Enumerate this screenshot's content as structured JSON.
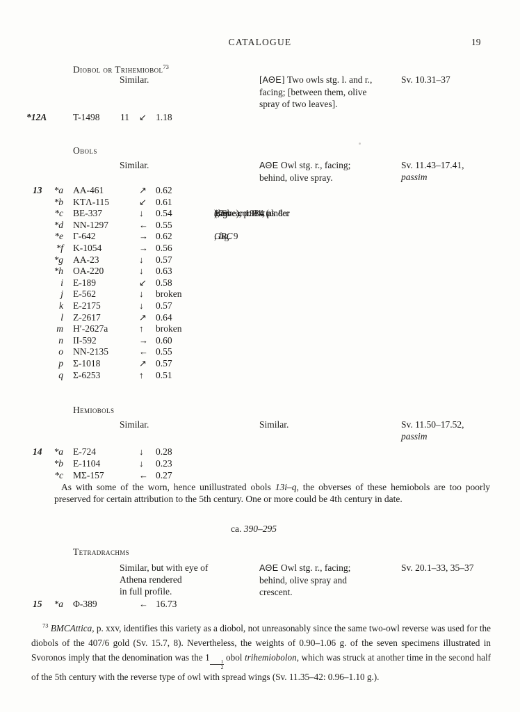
{
  "page": {
    "running_head": "CATALOGUE",
    "page_number": "19"
  },
  "colors": {
    "ink": "#1d1c1a",
    "paper": "#fdfdfb"
  },
  "sections": [
    {
      "heading": "Diobol or Trihemiobol",
      "heading_note": "73",
      "obverse": [
        "Similar."
      ],
      "reverse": [
        [
          {
            "t": "["
          },
          {
            "t": "ΑΘΕ",
            "sans": 1
          },
          {
            "t": "] Two owls stg. l. and r.,"
          }
        ],
        [
          {
            "t": "facing; [between them, olive"
          }
        ],
        [
          {
            "t": "spray of two leaves]."
          }
        ]
      ],
      "refs": [
        [
          {
            "t": "Sv. 10.31–37"
          }
        ]
      ],
      "entries": [
        {
          "n": "*12A",
          "id": "T-1498",
          "die": "11",
          "ax": "↙",
          "wt": "1.18"
        }
      ]
    },
    {
      "heading": "Obols",
      "obverse": [
        "Similar."
      ],
      "reverse": [
        [
          {
            "t": "ΑΘΕ",
            "sans": 1
          },
          {
            "t": " Owl stg. r., facing;"
          }
        ],
        [
          {
            "t": "behind, olive spray."
          }
        ]
      ],
      "refs": [
        [
          {
            "t": "Sv. 11.43–17.41,"
          }
        ],
        [
          {
            "t": "passim",
            "i": 1
          }
        ]
      ],
      "entries": [
        {
          "n": "13",
          "l": "*a",
          "id": "AA-461",
          "ax": "↗",
          "wt": "0.62"
        },
        {
          "l": "*b",
          "id": "KTΛ-115",
          "ax": "↙",
          "wt": "0.61"
        },
        {
          "l": "*c",
          "id": "BE-337",
          "ax": "↓",
          "wt": "0.54",
          "note": [
            {
              "t": "(same context as "
            },
            {
              "t": "12g",
              "i": 1
            },
            {
              "t": "); Shear 1984 (under "
            },
            {
              "t": "12g",
              "i": 1
            },
            {
              "t": " above), p. 31, pl. 8:c"
            }
          ]
        },
        {
          "l": "*d",
          "id": "NN-1297",
          "ax": "←",
          "wt": "0.55"
        },
        {
          "l": "*e",
          "id": "Γ-642",
          "ax": "→",
          "wt": "0.62",
          "note": [
            {
              "t": "GRC",
              "i": 1
            },
            {
              "t": ", fig. 9"
            }
          ]
        },
        {
          "l": "*f",
          "id": "K-1054",
          "ax": "→",
          "wt": "0.56"
        },
        {
          "l": "*g",
          "id": "AA-23",
          "ax": "↓",
          "wt": "0.57"
        },
        {
          "l": "*h",
          "id": "OA-220",
          "ax": "↓",
          "wt": "0.63"
        },
        {
          "l": "i",
          "id": "E-189",
          "ax": "↙",
          "wt": "0.58"
        },
        {
          "l": "j",
          "id": "E-562",
          "ax": "↓",
          "wt": "broken"
        },
        {
          "l": "k",
          "id": "E-2175",
          "ax": "↓",
          "wt": "0.57"
        },
        {
          "l": "l",
          "id": "Z-2617",
          "ax": "↗",
          "wt": "0.64"
        },
        {
          "l": "m",
          "id": "H′-2627a",
          "ax": "↑",
          "wt": "broken"
        },
        {
          "l": "n",
          "id": "II-592",
          "ax": "→",
          "wt": "0.60"
        },
        {
          "l": "o",
          "id": "NN-2135",
          "ax": "←",
          "wt": "0.55"
        },
        {
          "l": "p",
          "id": "Σ-1018",
          "ax": "↗",
          "wt": "0.57"
        },
        {
          "l": "q",
          "id": "Σ-6253",
          "ax": "↑",
          "wt": "0.51"
        }
      ]
    },
    {
      "heading": "Hemiobols",
      "obverse": [
        "Similar."
      ],
      "reverse": [
        [
          {
            "t": "Similar."
          }
        ]
      ],
      "refs": [
        [
          {
            "t": "Sv. 11.50–17.52,"
          }
        ],
        [
          {
            "t": "passim",
            "i": 1
          }
        ]
      ],
      "entries": [
        {
          "n": "14",
          "l": "*a",
          "id": "E-724",
          "ax": "↓",
          "wt": "0.28"
        },
        {
          "l": "*b",
          "id": "E-1104",
          "ax": "↓",
          "wt": "0.23"
        },
        {
          "l": "*c",
          "id": "MΣ-157",
          "ax": "←",
          "wt": "0.27"
        }
      ]
    },
    {
      "heading": "Tetradrachms",
      "obverse": [
        "Similar, but with eye of",
        "Athena rendered",
        "in full profile."
      ],
      "reverse": [
        [
          {
            "t": "ΑΘΕ",
            "sans": 1
          },
          {
            "t": " Owl stg. r., facing;"
          }
        ],
        [
          {
            "t": "behind, olive spray and"
          }
        ],
        [
          {
            "t": "crescent."
          }
        ]
      ],
      "refs": [
        [
          {
            "t": "Sv. 20.1–33, 35–37"
          }
        ]
      ],
      "entries": [
        {
          "n": "15",
          "l": "*a",
          "id": "Φ-389",
          "ax": "←",
          "wt": "16.73"
        }
      ]
    }
  ],
  "commentary": {
    "segments": [
      {
        "t": "As with some of the worn, hence unillustrated obols "
      },
      {
        "t": "13i–q",
        "i": 1
      },
      {
        "t": ", the obverses of these hemiobols are too poorly preserved for certain attribution to the 5th century. One or more could be 4th century in date."
      }
    ]
  },
  "date_range": {
    "prefix": "ca. ",
    "range": "390–295"
  },
  "footnote": {
    "segments": [
      {
        "t": "73",
        "sup": 1
      },
      {
        "t": " "
      },
      {
        "t": "BMCAttica",
        "i": 1
      },
      {
        "t": ", p. xxv, identifies this variety as a diobol, not unreasonably since the same two-owl reverse was used for the diobols of the 407/6 gold (Sv. 15.7, 8). Nevertheless, the weights of 0.90–1.06 g. of the seven specimens illustrated in Svoronos imply that the denomination was the 1"
      },
      {
        "frac": {
          "n": "1",
          "d": "2"
        }
      },
      {
        "t": " obol "
      },
      {
        "t": "trihemiobolon",
        "i": 1
      },
      {
        "t": ", which was struck at another time in the second half of the 5th century with the reverse type of owl with spread wings (Sv. 11.35–42: 0.96–1.10 g.)."
      }
    ]
  }
}
